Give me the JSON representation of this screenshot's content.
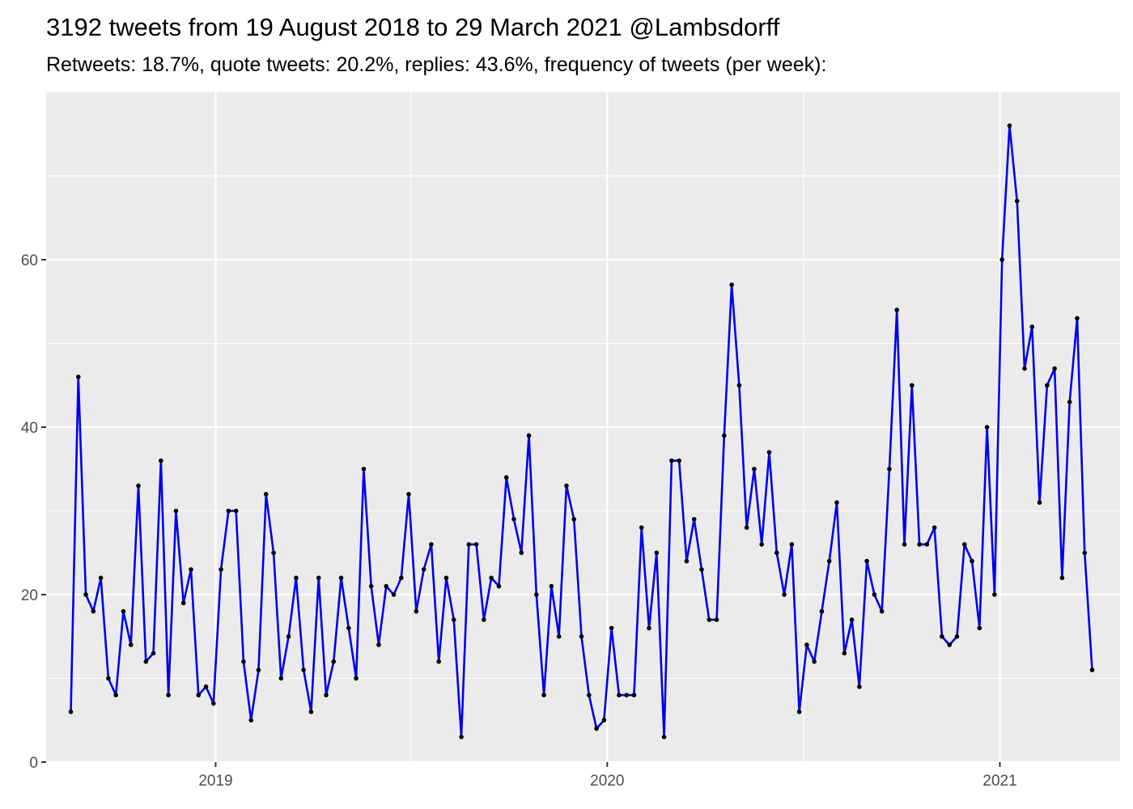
{
  "chart_data": {
    "type": "line",
    "title": "3192 tweets from 19 August 2018 to 29 March 2021 @Lambsdorff",
    "subtitle": "Retweets: 18.7%, quote tweets: 20.2%, replies: 43.6%, frequency of tweets (per week):",
    "xlabel": "",
    "ylabel": "",
    "x_axis_type": "date",
    "xlim": [
      "2018-07-27",
      "2021-04-23"
    ],
    "ylim": [
      0,
      80
    ],
    "y_ticks": [
      0,
      20,
      40,
      60
    ],
    "y_tick_labels": [
      "0",
      "20",
      "40",
      "60"
    ],
    "x_ticks": [
      "2019-01-01",
      "2020-01-01",
      "2021-01-01"
    ],
    "x_tick_labels": [
      "2019",
      "2020",
      "2021"
    ],
    "x_minor_ticks": [
      "2019-07-02",
      "2020-07-02"
    ],
    "grid": true,
    "legend": "none",
    "line_color": "#0000ee",
    "point_color": "#000000",
    "panel_color": "#ebebeb",
    "grid_color": "#ffffff",
    "series": [
      {
        "x": [
          "2018-08-19",
          "2018-08-26",
          "2018-09-02",
          "2018-09-09",
          "2018-09-16",
          "2018-09-23",
          "2018-09-30",
          "2018-10-07",
          "2018-10-14",
          "2018-10-21",
          "2018-10-28",
          "2018-11-04",
          "2018-11-11",
          "2018-11-18",
          "2018-11-25",
          "2018-12-02",
          "2018-12-09",
          "2018-12-16",
          "2018-12-23",
          "2018-12-30",
          "2019-01-06",
          "2019-01-13",
          "2019-01-20",
          "2019-01-27",
          "2019-02-03",
          "2019-02-10",
          "2019-02-17",
          "2019-02-24",
          "2019-03-03",
          "2019-03-10",
          "2019-03-17",
          "2019-03-24",
          "2019-03-31",
          "2019-04-07",
          "2019-04-14",
          "2019-04-21",
          "2019-04-28",
          "2019-05-05",
          "2019-05-12",
          "2019-05-19",
          "2019-05-26",
          "2019-06-02",
          "2019-06-09",
          "2019-06-16",
          "2019-06-23",
          "2019-06-30",
          "2019-07-07",
          "2019-07-14",
          "2019-07-21",
          "2019-07-28",
          "2019-08-04",
          "2019-08-11",
          "2019-08-18",
          "2019-08-25",
          "2019-09-01",
          "2019-09-08",
          "2019-09-15",
          "2019-09-22",
          "2019-09-29",
          "2019-10-06",
          "2019-10-13",
          "2019-10-20",
          "2019-10-27",
          "2019-11-03",
          "2019-11-10",
          "2019-11-17",
          "2019-11-24",
          "2019-12-01",
          "2019-12-08",
          "2019-12-15",
          "2019-12-22",
          "2019-12-29",
          "2020-01-05",
          "2020-01-12",
          "2020-01-19",
          "2020-01-26",
          "2020-02-02",
          "2020-02-09",
          "2020-02-16",
          "2020-02-23",
          "2020-03-01",
          "2020-03-08",
          "2020-03-15",
          "2020-03-22",
          "2020-03-29",
          "2020-04-05",
          "2020-04-12",
          "2020-04-19",
          "2020-04-26",
          "2020-05-03",
          "2020-05-10",
          "2020-05-17",
          "2020-05-24",
          "2020-05-31",
          "2020-06-07",
          "2020-06-14",
          "2020-06-21",
          "2020-06-28",
          "2020-07-05",
          "2020-07-12",
          "2020-07-19",
          "2020-07-26",
          "2020-08-02",
          "2020-08-09",
          "2020-08-16",
          "2020-08-23",
          "2020-08-30",
          "2020-09-06",
          "2020-09-13",
          "2020-09-20",
          "2020-09-27",
          "2020-10-04",
          "2020-10-11",
          "2020-10-18",
          "2020-10-25",
          "2020-11-01",
          "2020-11-08",
          "2020-11-15",
          "2020-11-22",
          "2020-11-29",
          "2020-12-06",
          "2020-12-13",
          "2020-12-20",
          "2020-12-27",
          "2021-01-03",
          "2021-01-10",
          "2021-01-17",
          "2021-01-24",
          "2021-01-31",
          "2021-02-07",
          "2021-02-14",
          "2021-02-21",
          "2021-02-28",
          "2021-03-07",
          "2021-03-14",
          "2021-03-21",
          "2021-03-28"
        ],
        "y": [
          6,
          46,
          20,
          18,
          22,
          10,
          8,
          18,
          14,
          33,
          12,
          13,
          36,
          8,
          30,
          19,
          23,
          8,
          9,
          7,
          23,
          30,
          30,
          12,
          5,
          11,
          32,
          25,
          10,
          15,
          22,
          11,
          6,
          22,
          8,
          12,
          22,
          16,
          10,
          35,
          21,
          14,
          21,
          20,
          22,
          32,
          18,
          23,
          26,
          12,
          22,
          17,
          3,
          26,
          26,
          17,
          22,
          21,
          34,
          29,
          25,
          39,
          20,
          8,
          21,
          15,
          33,
          29,
          15,
          8,
          4,
          5,
          16,
          8,
          8,
          8,
          28,
          16,
          25,
          3,
          36,
          36,
          24,
          29,
          23,
          17,
          17,
          39,
          57,
          45,
          28,
          35,
          26,
          37,
          25,
          20,
          26,
          6,
          14,
          12,
          18,
          24,
          31,
          13,
          17,
          9,
          24,
          20,
          18,
          35,
          54,
          26,
          45,
          26,
          26,
          28,
          15,
          14,
          15,
          26,
          24,
          16,
          40,
          20,
          60,
          76,
          67,
          47,
          52,
          31,
          45,
          47,
          22,
          43,
          53,
          25,
          11
        ]
      }
    ]
  }
}
